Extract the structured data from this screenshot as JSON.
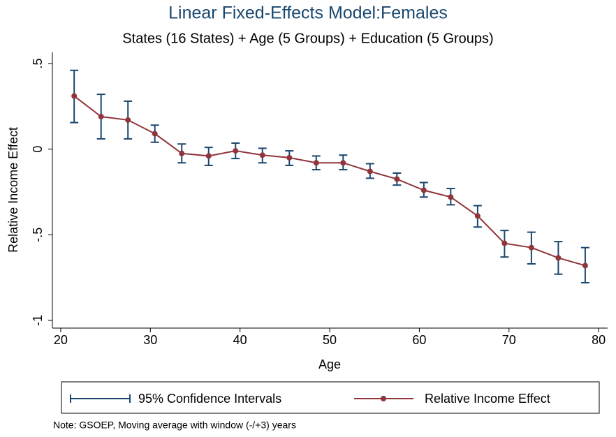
{
  "chart_data": {
    "type": "line",
    "title": "Linear Fixed-Effects Model:Females",
    "subtitle": "States (16 States) + Age (5 Groups) + Education (5 Groups)",
    "x_label": "Age",
    "y_label": "Relative Income Effect",
    "note": "Note: GSOEP, Moving average with window (-/+3) years",
    "x": [
      21.5,
      24.5,
      27.5,
      30.5,
      33.5,
      36.5,
      39.5,
      42.5,
      45.5,
      48.5,
      51.5,
      54.5,
      57.5,
      60.5,
      63.5,
      66.5,
      69.5,
      72.5,
      75.5,
      78.5
    ],
    "series": [
      {
        "name": "95% Confidence Intervals",
        "color": "#1a476f",
        "lower": [
          0.155,
          0.06,
          0.06,
          0.04,
          -0.08,
          -0.095,
          -0.055,
          -0.08,
          -0.095,
          -0.12,
          -0.12,
          -0.17,
          -0.21,
          -0.28,
          -0.325,
          -0.455,
          -0.63,
          -0.67,
          -0.73,
          -0.78
        ],
        "upper": [
          0.46,
          0.32,
          0.28,
          0.14,
          0.03,
          0.01,
          0.035,
          0.005,
          -0.01,
          -0.04,
          -0.035,
          -0.085,
          -0.14,
          -0.195,
          -0.23,
          -0.33,
          -0.475,
          -0.485,
          -0.54,
          -0.575
        ]
      },
      {
        "name": "Relative Income Effect",
        "color": "#90353b",
        "values": [
          0.31,
          0.19,
          0.17,
          0.09,
          -0.025,
          -0.04,
          -0.01,
          -0.035,
          -0.05,
          -0.08,
          -0.08,
          -0.13,
          -0.175,
          -0.24,
          -0.28,
          -0.39,
          -0.55,
          -0.575,
          -0.635,
          -0.68
        ]
      }
    ],
    "xlim": [
      19.07,
      81.0
    ],
    "xticks": [
      20,
      30,
      40,
      50,
      60,
      70,
      80
    ],
    "ylim": [
      -1.045,
      0.565
    ],
    "yticks": [
      {
        "value": 0.5,
        "label": ".5"
      },
      0,
      {
        "value": -0.5,
        "label": "-.5"
      },
      -1
    ]
  }
}
